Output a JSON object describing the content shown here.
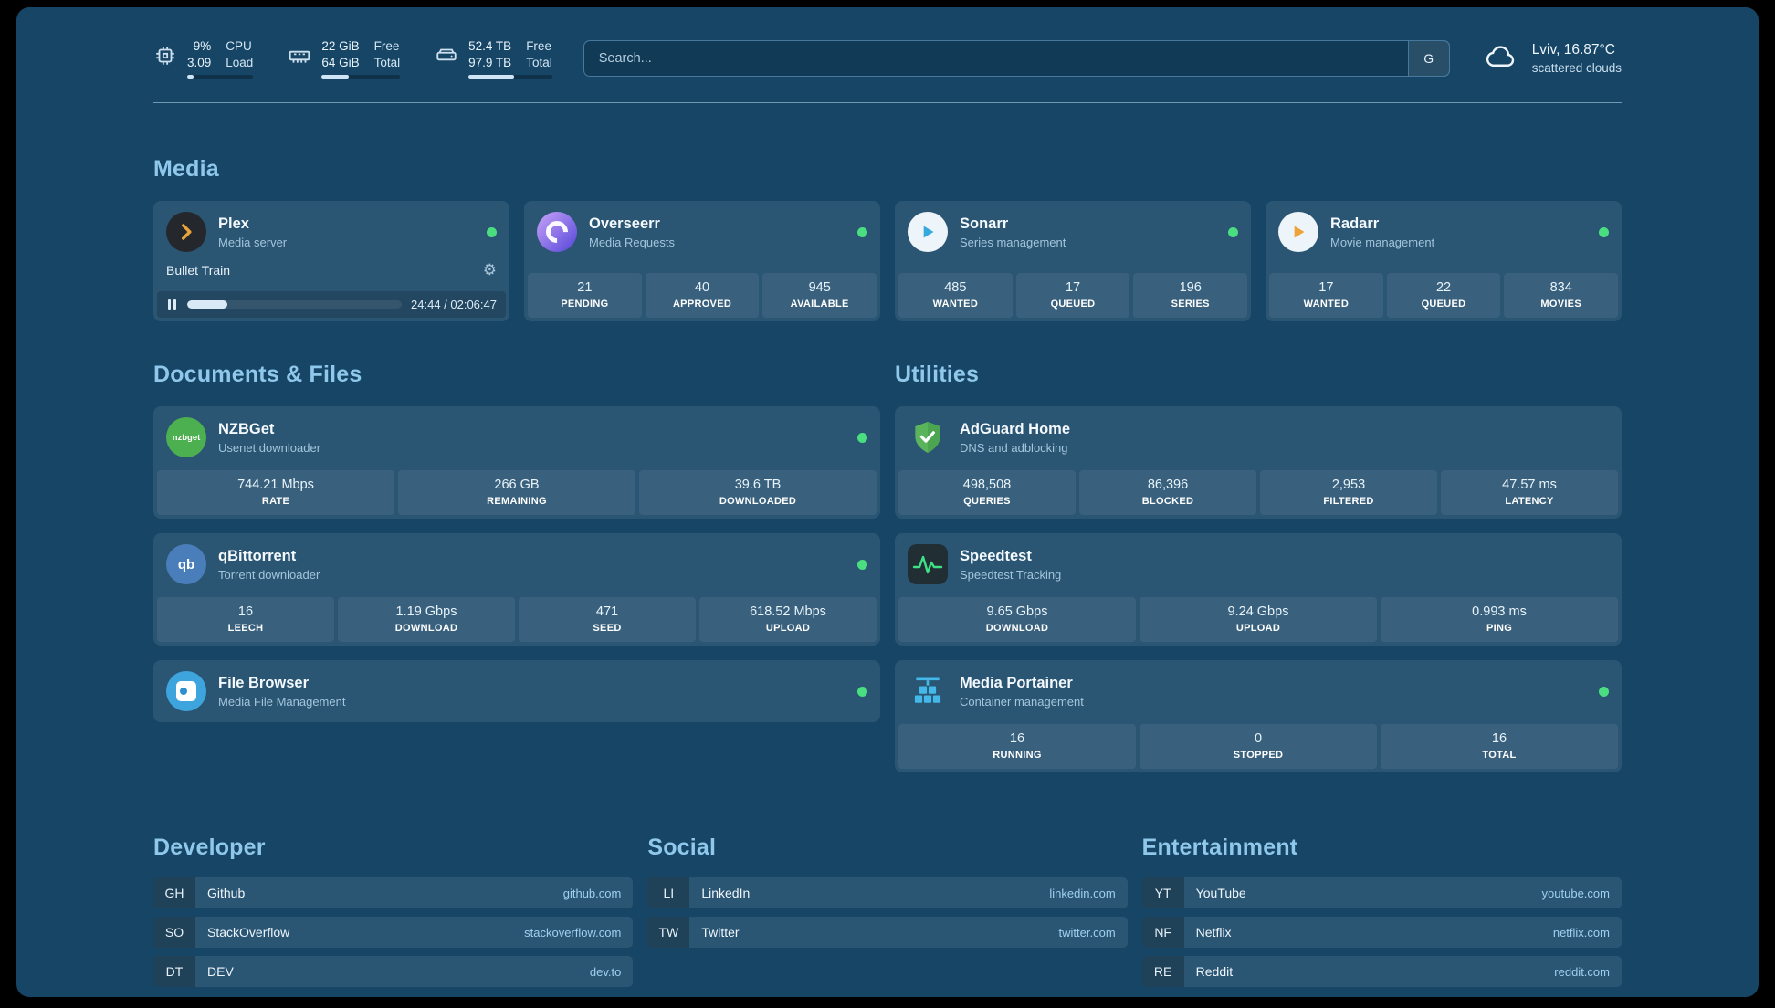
{
  "header": {
    "resources": [
      {
        "id": "cpu",
        "line1_value": "9%",
        "line2_value": "3.09",
        "line1_label": "CPU",
        "line2_label": "Load",
        "progress": 9
      },
      {
        "id": "memory",
        "line1_value": "22 GiB",
        "line2_value": "64 GiB",
        "line1_label": "Free",
        "line2_label": "Total",
        "progress": 34
      },
      {
        "id": "disk",
        "line1_value": "52.4 TB",
        "line2_value": "97.9 TB",
        "line1_label": "Free",
        "line2_label": "Total",
        "progress": 54
      }
    ],
    "search": {
      "placeholder": "Search...",
      "provider": "G"
    },
    "weather": {
      "location": "Lviv, 16.87°C",
      "condition": "scattered clouds"
    }
  },
  "media": {
    "heading": "Media",
    "plex": {
      "title": "Plex",
      "subtitle": "Media server",
      "online": true,
      "now_playing": {
        "title": "Bullet Train",
        "time": "24:44 / 02:06:47",
        "progress": 19
      }
    },
    "overseerr": {
      "title": "Overseerr",
      "subtitle": "Media Requests",
      "online": true,
      "stats": [
        {
          "value": "21",
          "label": "PENDING"
        },
        {
          "value": "40",
          "label": "APPROVED"
        },
        {
          "value": "945",
          "label": "AVAILABLE"
        }
      ]
    },
    "sonarr": {
      "title": "Sonarr",
      "subtitle": "Series management",
      "online": true,
      "stats": [
        {
          "value": "485",
          "label": "WANTED"
        },
        {
          "value": "17",
          "label": "QUEUED"
        },
        {
          "value": "196",
          "label": "SERIES"
        }
      ]
    },
    "radarr": {
      "title": "Radarr",
      "subtitle": "Movie management",
      "online": true,
      "stats": [
        {
          "value": "17",
          "label": "WANTED"
        },
        {
          "value": "22",
          "label": "QUEUED"
        },
        {
          "value": "834",
          "label": "MOVIES"
        }
      ]
    }
  },
  "documents": {
    "heading": "Documents & Files",
    "nzbget": {
      "title": "NZBGet",
      "subtitle": "Usenet downloader",
      "icon_text": "nzbget",
      "online": true,
      "stats": [
        {
          "value": "744.21 Mbps",
          "label": "RATE"
        },
        {
          "value": "266 GB",
          "label": "REMAINING"
        },
        {
          "value": "39.6 TB",
          "label": "DOWNLOADED"
        }
      ]
    },
    "qbittorrent": {
      "title": "qBittorrent",
      "subtitle": "Torrent downloader",
      "icon_text": "qb",
      "online": true,
      "stats": [
        {
          "value": "16",
          "label": "LEECH"
        },
        {
          "value": "1.19 Gbps",
          "label": "DOWNLOAD"
        },
        {
          "value": "471",
          "label": "SEED"
        },
        {
          "value": "618.52 Mbps",
          "label": "UPLOAD"
        }
      ]
    },
    "filebrowser": {
      "title": "File Browser",
      "subtitle": "Media File Management",
      "online": true
    }
  },
  "utilities": {
    "heading": "Utilities",
    "adguard": {
      "title": "AdGuard Home",
      "subtitle": "DNS and adblocking",
      "stats": [
        {
          "value": "498,508",
          "label": "QUERIES"
        },
        {
          "value": "86,396",
          "label": "BLOCKED"
        },
        {
          "value": "2,953",
          "label": "FILTERED"
        },
        {
          "value": "47.57 ms",
          "label": "LATENCY"
        }
      ]
    },
    "speedtest": {
      "title": "Speedtest",
      "subtitle": "Speedtest Tracking",
      "stats": [
        {
          "value": "9.65 Gbps",
          "label": "DOWNLOAD"
        },
        {
          "value": "9.24 Gbps",
          "label": "UPLOAD"
        },
        {
          "value": "0.993 ms",
          "label": "PING"
        }
      ]
    },
    "portainer": {
      "title": "Media Portainer",
      "subtitle": "Container management",
      "online": true,
      "stats": [
        {
          "value": "16",
          "label": "RUNNING"
        },
        {
          "value": "0",
          "label": "STOPPED"
        },
        {
          "value": "16",
          "label": "TOTAL"
        }
      ]
    }
  },
  "bookmarks": {
    "developer": {
      "heading": "Developer",
      "items": [
        {
          "abbr": "GH",
          "name": "Github",
          "domain": "github.com"
        },
        {
          "abbr": "SO",
          "name": "StackOverflow",
          "domain": "stackoverflow.com"
        },
        {
          "abbr": "DT",
          "name": "DEV",
          "domain": "dev.to"
        }
      ]
    },
    "social": {
      "heading": "Social",
      "items": [
        {
          "abbr": "LI",
          "name": "LinkedIn",
          "domain": "linkedin.com"
        },
        {
          "abbr": "TW",
          "name": "Twitter",
          "domain": "twitter.com"
        }
      ]
    },
    "entertainment": {
      "heading": "Entertainment",
      "items": [
        {
          "abbr": "YT",
          "name": "YouTube",
          "domain": "youtube.com"
        },
        {
          "abbr": "NF",
          "name": "Netflix",
          "domain": "netflix.com"
        },
        {
          "abbr": "RE",
          "name": "Reddit",
          "domain": "reddit.com"
        }
      ]
    }
  },
  "colors": {
    "background": "#164566",
    "heading_accent": "#8fc8ea",
    "status_online": "#4ade80"
  }
}
